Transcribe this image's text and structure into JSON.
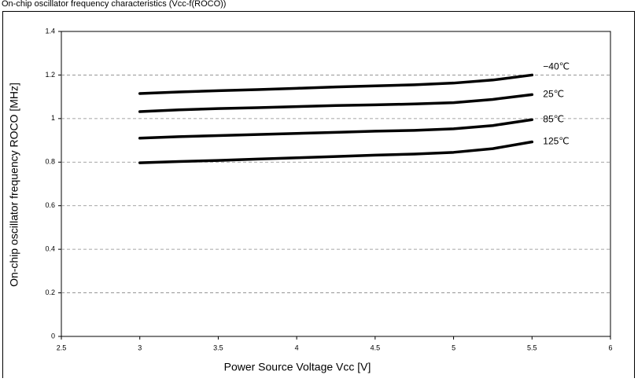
{
  "chart_data": {
    "type": "line",
    "title": "On-chip oscillator frequency characteristics (Vcc-f(ROCO))",
    "x_label": "Power Source Voltage Vcc [V]",
    "y_label": "On-chip oscillator frequency ROCO [MHz]",
    "x": [
      3,
      3.25,
      3.5,
      3.75,
      4,
      4.25,
      4.5,
      4.75,
      5,
      5.25,
      5.5
    ],
    "series": [
      {
        "name": "−40℃",
        "color": "#000000",
        "values": [
          1.115,
          1.122,
          1.128,
          1.133,
          1.139,
          1.145,
          1.15,
          1.155,
          1.163,
          1.177,
          1.2
        ]
      },
      {
        "name": "25℃",
        "color": "#000000",
        "values": [
          1.032,
          1.04,
          1.046,
          1.05,
          1.055,
          1.06,
          1.063,
          1.067,
          1.073,
          1.088,
          1.11
        ]
      },
      {
        "name": "85℃",
        "color": "#000000",
        "values": [
          0.91,
          0.917,
          0.922,
          0.927,
          0.932,
          0.937,
          0.942,
          0.946,
          0.953,
          0.968,
          0.995
        ]
      },
      {
        "name": "125℃",
        "color": "#000000",
        "values": [
          0.797,
          0.803,
          0.808,
          0.814,
          0.82,
          0.826,
          0.832,
          0.837,
          0.845,
          0.862,
          0.893
        ]
      }
    ],
    "xlim": [
      2.5,
      6
    ],
    "xticks": [
      2.5,
      3,
      3.5,
      4,
      4.5,
      5,
      5.5,
      6
    ],
    "ylim": [
      0,
      1.4
    ],
    "yticks": [
      0,
      0.2,
      0.4,
      0.6,
      0.8,
      1,
      1.2,
      1.4
    ],
    "grid": true
  }
}
